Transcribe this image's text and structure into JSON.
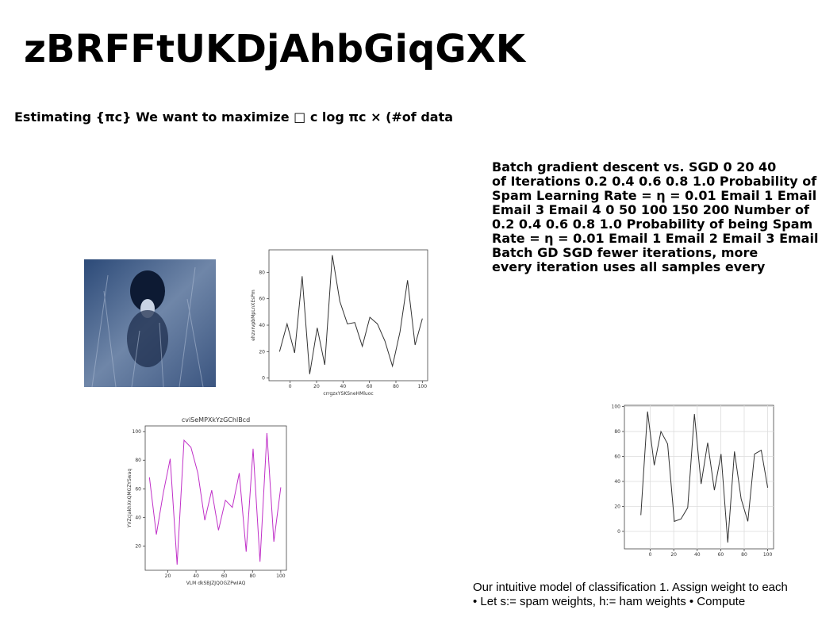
{
  "title": "zBRFFtUKDjAhbGiqGXK",
  "subtitle": "Estimating {πc} We want to maximize □ c log πc × (#of data",
  "right_text": [
    "Batch gradient descent vs. SGD 0 20 40",
    "of Iterations 0.2 0.4 0.6 0.8 1.0 Probability of",
    "Spam Learning Rate = η = 0.01 Email 1 Email",
    "Email 3 Email 4 0 50 100 150 200 Number of",
    "0.2 0.4 0.6 0.8 1.0 Probability of being Spam",
    "Rate = η = 0.01 Email 1 Email 2 Email 3 Email",
    "Batch GD SGD fewer iterations, more",
    "every iteration uses all samples every"
  ],
  "bottom_text": [
    "Our intuitive model of classification 1. Assign weight to each",
    "• Let s:= spam weights, h:= ham weights • Compute"
  ],
  "chart_data": [
    {
      "type": "line",
      "xlabel": "crrgzxYSKSneHMluoc",
      "ylabel": "ehzvrvpbMpLnXEsPm",
      "color": "#333333",
      "grid": false,
      "x": [
        -8,
        -2.3,
        3.4,
        9.1,
        14.8,
        20.5,
        26.2,
        31.9,
        37.6,
        43.3,
        48.9,
        54.6,
        60.3,
        66,
        71.7,
        77.4,
        83.1,
        88.8,
        94.5,
        100
      ],
      "values": [
        20,
        41,
        19,
        77,
        3,
        38,
        10,
        93,
        58,
        41,
        42,
        24,
        46,
        41,
        28,
        9,
        35,
        74,
        25,
        45
      ],
      "xlim": [
        -16,
        104
      ],
      "ylim": [
        -2,
        97
      ],
      "xticks": [
        0,
        20,
        40,
        60,
        80,
        100
      ],
      "yticks": [
        0,
        20,
        40,
        60,
        80
      ]
    },
    {
      "type": "line",
      "title": "cviSeMPXkYzGChlBcd",
      "xlabel": "VLM dkSBJZJQOGZPwIAQ",
      "ylabel": "YVZcJakhXnQMGZYSwaq",
      "color": "#c030c8",
      "grid": false,
      "x": [
        7,
        11.9,
        16.8,
        21.7,
        26.6,
        31.5,
        36.4,
        41.3,
        46.2,
        51.1,
        55.9,
        60.8,
        65.7,
        70.6,
        75.5,
        80.4,
        85.3,
        90.2,
        95.1,
        100
      ],
      "values": [
        68,
        28,
        57,
        81,
        7,
        94,
        89,
        71,
        38,
        59,
        31,
        52,
        47,
        71,
        16,
        88,
        9,
        99,
        23,
        61
      ],
      "xlim": [
        4,
        104
      ],
      "ylim": [
        3,
        104
      ],
      "xticks": [
        20,
        40,
        60,
        80,
        100
      ],
      "yticks": [
        20,
        40,
        60,
        80,
        100
      ]
    },
    {
      "type": "line",
      "color": "#333333",
      "grid": true,
      "x": [
        -8,
        -2.3,
        3.4,
        9.1,
        14.8,
        20.5,
        26.2,
        31.9,
        37.6,
        43.3,
        48.9,
        54.6,
        60.3,
        66,
        71.7,
        77.4,
        83.1,
        88.8,
        94.5,
        100
      ],
      "values": [
        13,
        96,
        53,
        80,
        70,
        8,
        10,
        19,
        94,
        38,
        71,
        33,
        62,
        -9,
        64,
        26,
        8,
        62,
        65,
        35
      ],
      "xlim": [
        -22,
        105
      ],
      "ylim": [
        -14,
        101
      ],
      "xticks": [
        0,
        20,
        40,
        60,
        80,
        100
      ],
      "yticks": [
        0,
        20,
        40,
        60,
        80,
        100
      ]
    }
  ]
}
